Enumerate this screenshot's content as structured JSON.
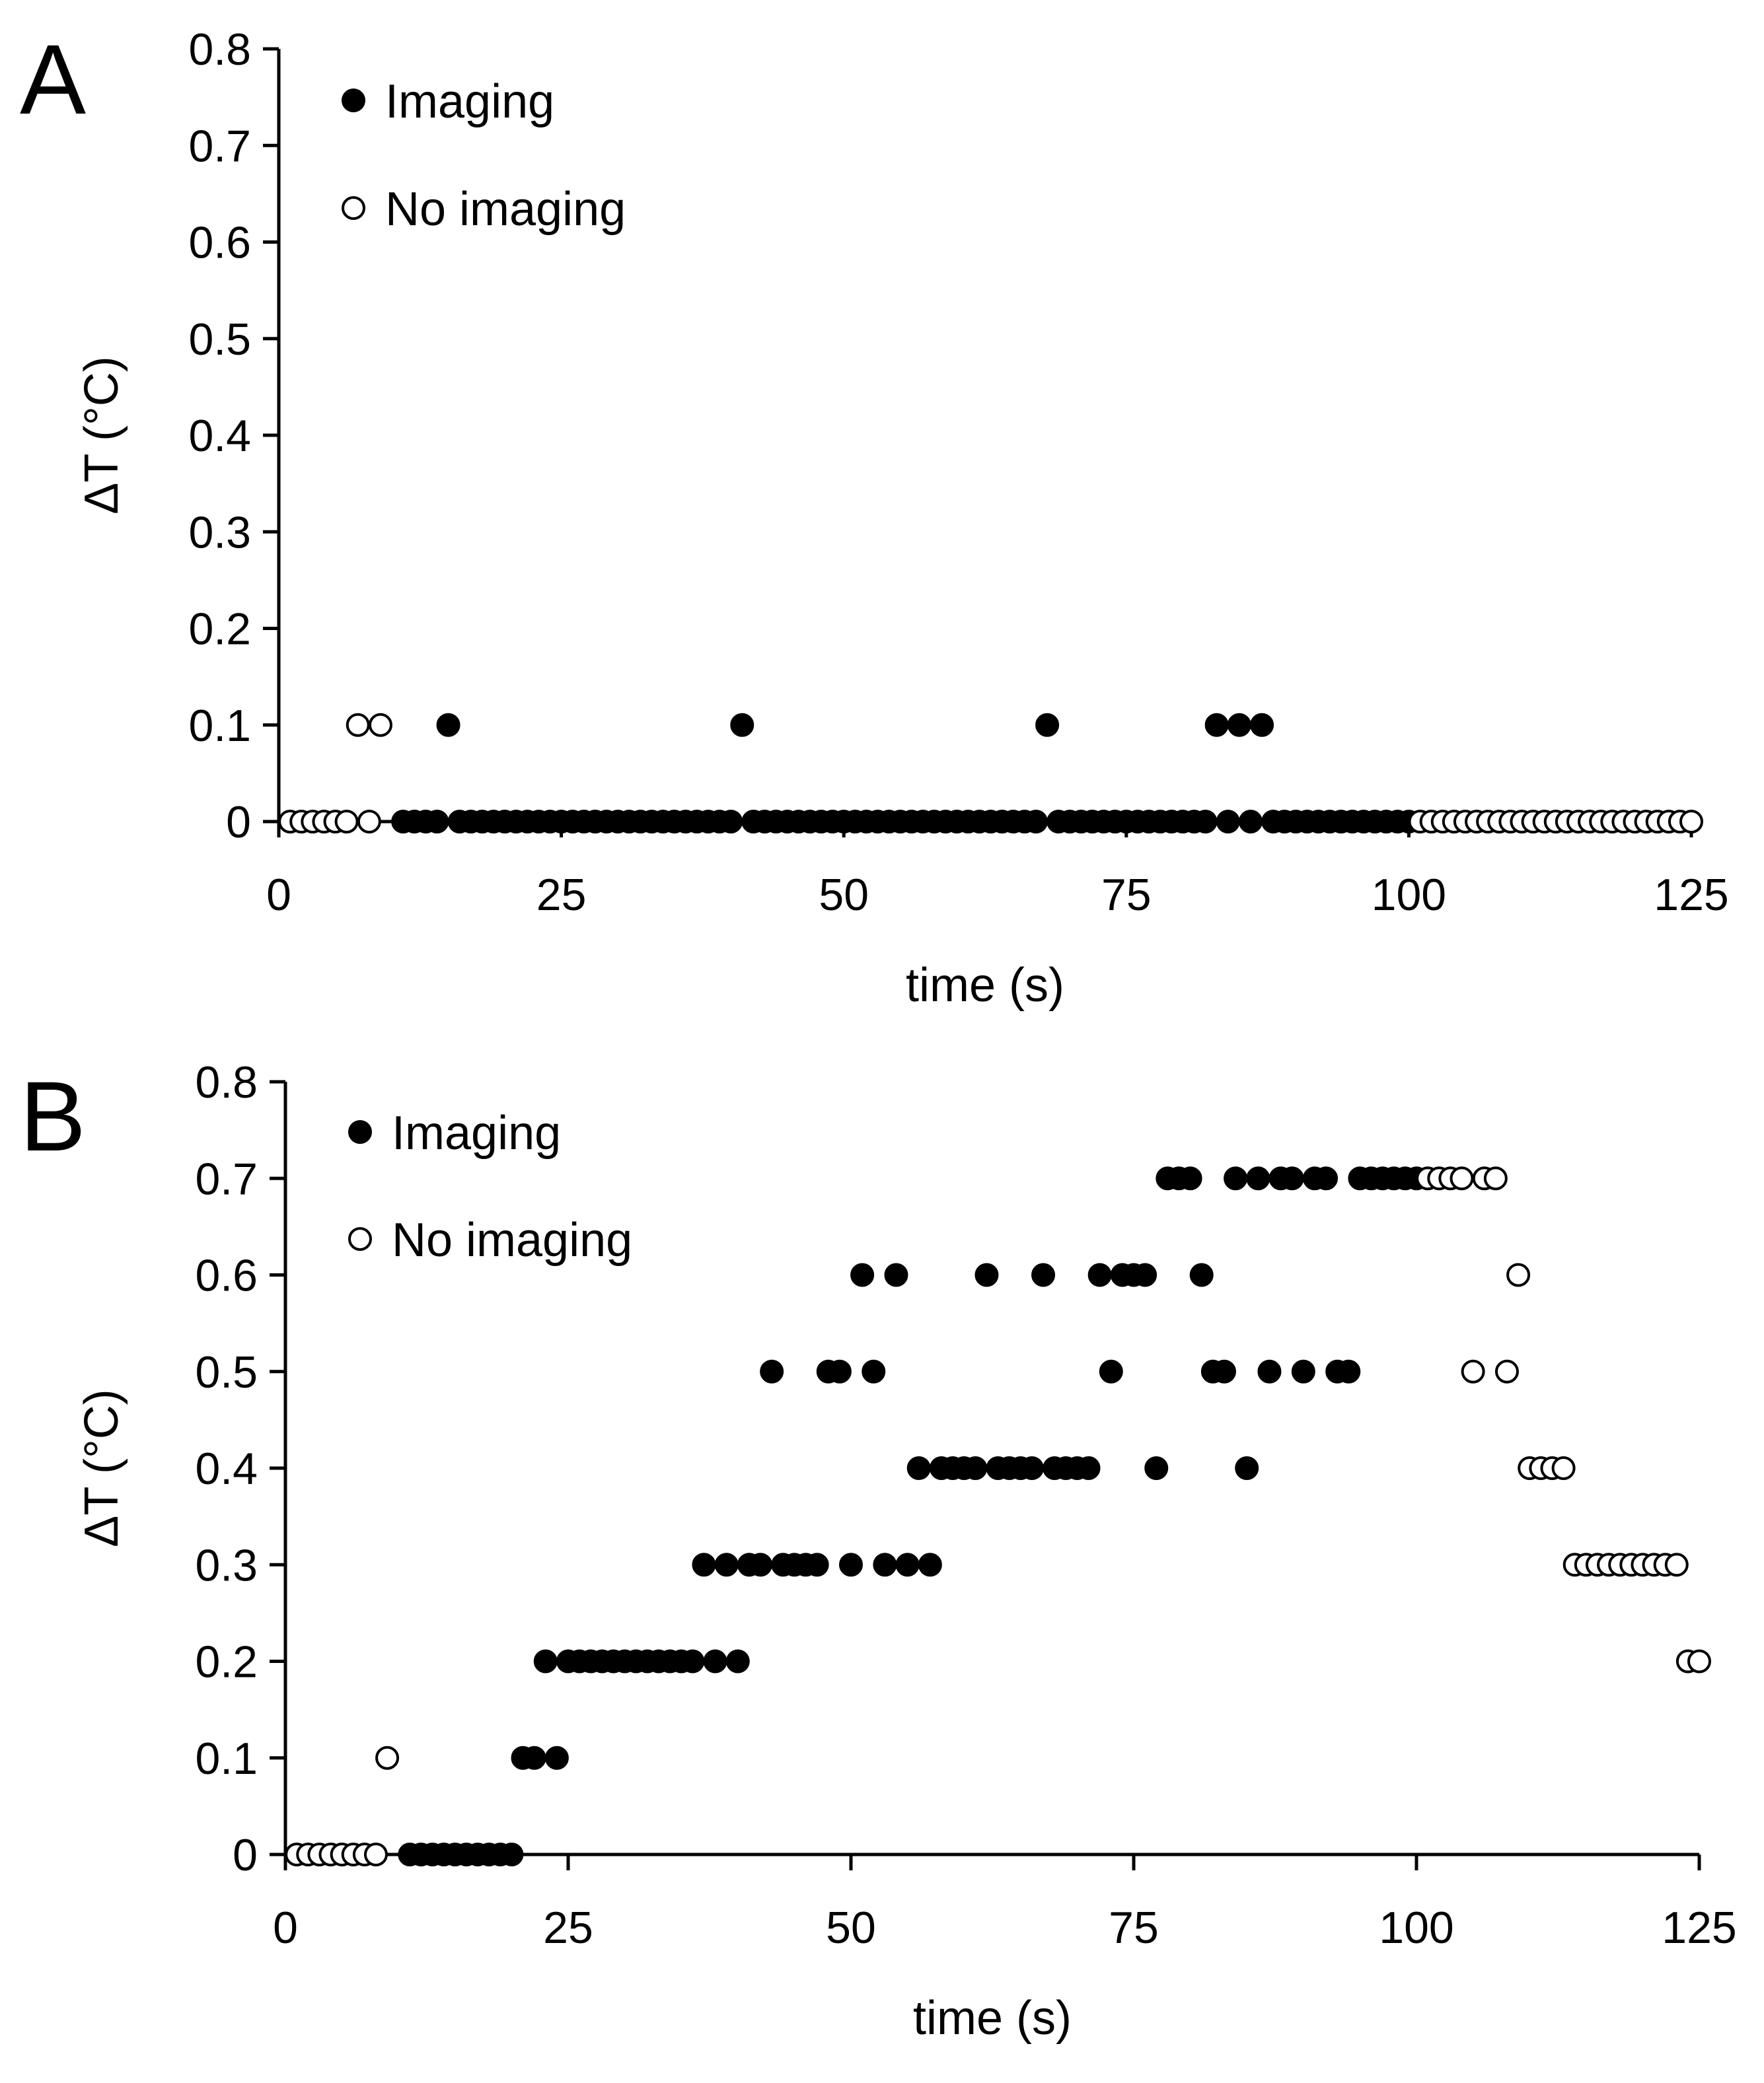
{
  "figure": {
    "panel_letters": [
      "A",
      "B"
    ]
  },
  "style": {
    "filled_marker_color": "#000000",
    "open_marker_fill": "#ffffff",
    "marker_stroke": "#000000",
    "axis_color": "#000000"
  },
  "chart_data": [
    {
      "panel": "A",
      "type": "scatter",
      "xlabel": "time (s)",
      "ylabel": "ΔT (°C)",
      "xlim": [
        0,
        125
      ],
      "ylim": [
        0,
        0.8
      ],
      "xticks": [
        0,
        25,
        50,
        75,
        100,
        125
      ],
      "xtick_labels": [
        "0",
        "25",
        "50",
        "75",
        "100",
        "125"
      ],
      "yticks": [
        0,
        0.1,
        0.2,
        0.3,
        0.4,
        0.5,
        0.6,
        0.7,
        0.8
      ],
      "ytick_labels": [
        "0",
        "0.1",
        "0.2",
        "0.3",
        "0.4",
        "0.5",
        "0.6",
        "0.7",
        "0.8"
      ],
      "legend": {
        "position": "top-left"
      },
      "series": [
        {
          "name": "Imaging",
          "marker": "filled-circle",
          "points": [
            [
              11,
              0
            ],
            [
              12,
              0
            ],
            [
              13,
              0
            ],
            [
              14,
              0
            ],
            [
              15,
              0.1
            ],
            [
              16,
              0
            ],
            [
              17,
              0
            ],
            [
              18,
              0
            ],
            [
              19,
              0
            ],
            [
              20,
              0
            ],
            [
              21,
              0
            ],
            [
              22,
              0
            ],
            [
              23,
              0
            ],
            [
              24,
              0
            ],
            [
              25,
              0
            ],
            [
              26,
              0
            ],
            [
              27,
              0
            ],
            [
              28,
              0
            ],
            [
              29,
              0
            ],
            [
              30,
              0
            ],
            [
              31,
              0
            ],
            [
              32,
              0
            ],
            [
              33,
              0
            ],
            [
              34,
              0
            ],
            [
              35,
              0
            ],
            [
              36,
              0
            ],
            [
              37,
              0
            ],
            [
              38,
              0
            ],
            [
              39,
              0
            ],
            [
              40,
              0
            ],
            [
              41,
              0.1
            ],
            [
              42,
              0
            ],
            [
              43,
              0
            ],
            [
              44,
              0
            ],
            [
              45,
              0
            ],
            [
              46,
              0
            ],
            [
              47,
              0
            ],
            [
              48,
              0
            ],
            [
              49,
              0
            ],
            [
              50,
              0
            ],
            [
              51,
              0
            ],
            [
              52,
              0
            ],
            [
              53,
              0
            ],
            [
              54,
              0
            ],
            [
              55,
              0
            ],
            [
              56,
              0
            ],
            [
              57,
              0
            ],
            [
              58,
              0
            ],
            [
              59,
              0
            ],
            [
              60,
              0
            ],
            [
              61,
              0
            ],
            [
              62,
              0
            ],
            [
              63,
              0
            ],
            [
              64,
              0
            ],
            [
              65,
              0
            ],
            [
              66,
              0
            ],
            [
              67,
              0
            ],
            [
              68,
              0.1
            ],
            [
              69,
              0
            ],
            [
              70,
              0
            ],
            [
              71,
              0
            ],
            [
              72,
              0
            ],
            [
              73,
              0
            ],
            [
              74,
              0
            ],
            [
              75,
              0
            ],
            [
              76,
              0
            ],
            [
              77,
              0
            ],
            [
              78,
              0
            ],
            [
              79,
              0
            ],
            [
              80,
              0
            ],
            [
              81,
              0
            ],
            [
              82,
              0
            ],
            [
              83,
              0.1
            ],
            [
              84,
              0
            ],
            [
              85,
              0.1
            ],
            [
              86,
              0
            ],
            [
              87,
              0.1
            ],
            [
              88,
              0
            ],
            [
              89,
              0
            ],
            [
              90,
              0
            ],
            [
              91,
              0
            ],
            [
              92,
              0
            ],
            [
              93,
              0
            ],
            [
              94,
              0
            ],
            [
              95,
              0
            ],
            [
              96,
              0
            ],
            [
              97,
              0
            ],
            [
              98,
              0
            ],
            [
              99,
              0
            ],
            [
              100,
              0
            ]
          ]
        },
        {
          "name": "No imaging",
          "marker": "open-circle",
          "points": [
            [
              1,
              0
            ],
            [
              2,
              0
            ],
            [
              3,
              0
            ],
            [
              4,
              0
            ],
            [
              5,
              0
            ],
            [
              6,
              0
            ],
            [
              7,
              0.1
            ],
            [
              8,
              0
            ],
            [
              9,
              0.1
            ],
            [
              101,
              0
            ],
            [
              102,
              0
            ],
            [
              103,
              0
            ],
            [
              104,
              0
            ],
            [
              105,
              0
            ],
            [
              106,
              0
            ],
            [
              107,
              0
            ],
            [
              108,
              0
            ],
            [
              109,
              0
            ],
            [
              110,
              0
            ],
            [
              111,
              0
            ],
            [
              112,
              0
            ],
            [
              113,
              0
            ],
            [
              114,
              0
            ],
            [
              115,
              0
            ],
            [
              116,
              0
            ],
            [
              117,
              0
            ],
            [
              118,
              0
            ],
            [
              119,
              0
            ],
            [
              120,
              0
            ],
            [
              121,
              0
            ],
            [
              122,
              0
            ],
            [
              123,
              0
            ],
            [
              124,
              0
            ],
            [
              125,
              0
            ]
          ]
        }
      ]
    },
    {
      "panel": "B",
      "type": "scatter",
      "xlabel": "time (s)",
      "ylabel": "ΔT (°C)",
      "xlim": [
        0,
        125
      ],
      "ylim": [
        0,
        0.8
      ],
      "xticks": [
        0,
        25,
        50,
        75,
        100,
        125
      ],
      "xtick_labels": [
        "0",
        "25",
        "50",
        "75",
        "100",
        "125"
      ],
      "yticks": [
        0,
        0.1,
        0.2,
        0.3,
        0.4,
        0.5,
        0.6,
        0.7,
        0.8
      ],
      "ytick_labels": [
        "0",
        "0.1",
        "0.2",
        "0.3",
        "0.4",
        "0.5",
        "0.6",
        "0.7",
        "0.8"
      ],
      "legend": {
        "position": "top-left"
      },
      "series": [
        {
          "name": "Imaging",
          "marker": "filled-circle",
          "points": [
            [
              11,
              0
            ],
            [
              12,
              0
            ],
            [
              13,
              0
            ],
            [
              14,
              0
            ],
            [
              15,
              0
            ],
            [
              16,
              0
            ],
            [
              17,
              0
            ],
            [
              18,
              0
            ],
            [
              19,
              0
            ],
            [
              20,
              0
            ],
            [
              21,
              0.1
            ],
            [
              22,
              0.1
            ],
            [
              23,
              0.2
            ],
            [
              24,
              0.1
            ],
            [
              25,
              0.2
            ],
            [
              26,
              0.2
            ],
            [
              27,
              0.2
            ],
            [
              28,
              0.2
            ],
            [
              29,
              0.2
            ],
            [
              30,
              0.2
            ],
            [
              31,
              0.2
            ],
            [
              32,
              0.2
            ],
            [
              33,
              0.2
            ],
            [
              34,
              0.2
            ],
            [
              35,
              0.2
            ],
            [
              36,
              0.2
            ],
            [
              37,
              0.3
            ],
            [
              38,
              0.2
            ],
            [
              39,
              0.3
            ],
            [
              40,
              0.2
            ],
            [
              41,
              0.3
            ],
            [
              42,
              0.3
            ],
            [
              43,
              0.5
            ],
            [
              44,
              0.3
            ],
            [
              45,
              0.3
            ],
            [
              46,
              0.3
            ],
            [
              47,
              0.3
            ],
            [
              48,
              0.5
            ],
            [
              49,
              0.5
            ],
            [
              50,
              0.3
            ],
            [
              51,
              0.6
            ],
            [
              52,
              0.5
            ],
            [
              53,
              0.3
            ],
            [
              54,
              0.6
            ],
            [
              55,
              0.3
            ],
            [
              56,
              0.4
            ],
            [
              57,
              0.3
            ],
            [
              58,
              0.4
            ],
            [
              59,
              0.4
            ],
            [
              60,
              0.4
            ],
            [
              61,
              0.4
            ],
            [
              62,
              0.6
            ],
            [
              63,
              0.4
            ],
            [
              64,
              0.4
            ],
            [
              65,
              0.4
            ],
            [
              66,
              0.4
            ],
            [
              67,
              0.6
            ],
            [
              68,
              0.4
            ],
            [
              69,
              0.4
            ],
            [
              70,
              0.4
            ],
            [
              71,
              0.4
            ],
            [
              72,
              0.6
            ],
            [
              73,
              0.5
            ],
            [
              74,
              0.6
            ],
            [
              75,
              0.6
            ],
            [
              76,
              0.6
            ],
            [
              77,
              0.4
            ],
            [
              78,
              0.7
            ],
            [
              79,
              0.7
            ],
            [
              80,
              0.7
            ],
            [
              81,
              0.6
            ],
            [
              82,
              0.5
            ],
            [
              83,
              0.5
            ],
            [
              84,
              0.7
            ],
            [
              85,
              0.4
            ],
            [
              86,
              0.7
            ],
            [
              87,
              0.5
            ],
            [
              88,
              0.7
            ],
            [
              89,
              0.7
            ],
            [
              90,
              0.5
            ],
            [
              91,
              0.7
            ],
            [
              92,
              0.7
            ],
            [
              93,
              0.5
            ],
            [
              94,
              0.5
            ],
            [
              95,
              0.7
            ],
            [
              96,
              0.7
            ],
            [
              97,
              0.7
            ],
            [
              98,
              0.7
            ],
            [
              99,
              0.7
            ],
            [
              100,
              0.7
            ]
          ]
        },
        {
          "name": "No imaging",
          "marker": "open-circle",
          "points": [
            [
              1,
              0
            ],
            [
              2,
              0
            ],
            [
              3,
              0
            ],
            [
              4,
              0
            ],
            [
              5,
              0
            ],
            [
              6,
              0
            ],
            [
              7,
              0
            ],
            [
              8,
              0
            ],
            [
              9,
              0.1
            ],
            [
              101,
              0.7
            ],
            [
              102,
              0.7
            ],
            [
              103,
              0.7
            ],
            [
              104,
              0.7
            ],
            [
              105,
              0.5
            ],
            [
              106,
              0.7
            ],
            [
              107,
              0.7
            ],
            [
              108,
              0.5
            ],
            [
              109,
              0.6
            ],
            [
              110,
              0.4
            ],
            [
              111,
              0.4
            ],
            [
              112,
              0.4
            ],
            [
              113,
              0.4
            ],
            [
              114,
              0.3
            ],
            [
              115,
              0.3
            ],
            [
              116,
              0.3
            ],
            [
              117,
              0.3
            ],
            [
              118,
              0.3
            ],
            [
              119,
              0.3
            ],
            [
              120,
              0.3
            ],
            [
              121,
              0.3
            ],
            [
              122,
              0.3
            ],
            [
              123,
              0.3
            ],
            [
              124,
              0.2
            ],
            [
              125,
              0.2
            ]
          ]
        }
      ]
    }
  ]
}
